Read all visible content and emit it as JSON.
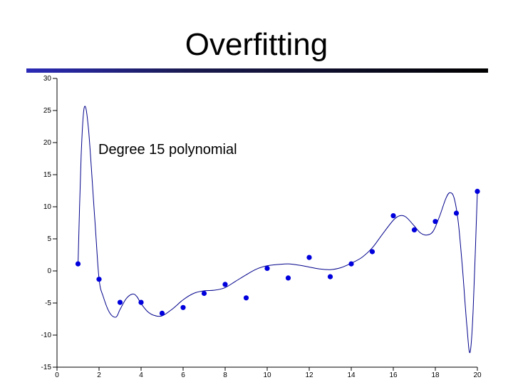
{
  "slide": {
    "title": "Overfitting"
  },
  "chart_data": {
    "type": "scatter",
    "title": "",
    "xlabel": "",
    "ylabel": "",
    "xlim": [
      0,
      20
    ],
    "ylim": [
      -15,
      30
    ],
    "x_ticks": [
      0,
      2,
      4,
      6,
      8,
      10,
      12,
      14,
      16,
      18,
      20
    ],
    "y_ticks": [
      30,
      25,
      20,
      15,
      10,
      5,
      0,
      -5,
      -10,
      -15
    ],
    "grid": false,
    "annotation": "Degree 15 polynomial",
    "colors": {
      "points": "#0000dd",
      "curve": "#00008b",
      "axis": "#000000"
    },
    "series": [
      {
        "kind": "points",
        "x": [
          1,
          2,
          3,
          4,
          5,
          6,
          7,
          8,
          9,
          10,
          11,
          12,
          13,
          14,
          15,
          16,
          17,
          18,
          19,
          20
        ],
        "y": [
          1.1,
          -1.3,
          -4.9,
          -4.9,
          -6.6,
          -5.7,
          -3.5,
          -2.1,
          -4.2,
          0.4,
          -1.1,
          2.1,
          -0.9,
          1.1,
          3.0,
          8.6,
          6.4,
          7.7,
          9.0,
          12.4
        ]
      },
      {
        "kind": "curve",
        "x": [
          1.0,
          1.15,
          1.3,
          1.5,
          1.8,
          2.0,
          2.2,
          2.5,
          2.8,
          3.0,
          3.3,
          3.6,
          3.8,
          4.0,
          4.3,
          4.6,
          5.0,
          5.5,
          6.0,
          6.5,
          7.0,
          7.5,
          8.0,
          8.5,
          9.0,
          9.5,
          10.0,
          10.5,
          11.0,
          11.5,
          12.0,
          12.5,
          13.0,
          13.5,
          14.0,
          14.5,
          15.0,
          15.5,
          16.0,
          16.3,
          16.6,
          17.0,
          17.3,
          17.6,
          17.9,
          18.2,
          18.5,
          18.7,
          18.9,
          19.1,
          19.3,
          19.5,
          19.65,
          19.8,
          20.0
        ],
        "y": [
          1.0,
          18.0,
          25.5,
          22.0,
          8.0,
          -1.2,
          -4.0,
          -6.5,
          -7.2,
          -6.0,
          -4.3,
          -3.6,
          -4.0,
          -5.1,
          -6.3,
          -6.9,
          -7.0,
          -5.9,
          -4.5,
          -3.5,
          -3.1,
          -3.0,
          -2.6,
          -1.6,
          -0.6,
          0.3,
          0.8,
          1.0,
          1.1,
          0.9,
          0.6,
          0.3,
          0.2,
          0.5,
          1.2,
          2.1,
          3.6,
          5.8,
          7.9,
          8.6,
          8.4,
          7.0,
          5.9,
          5.6,
          6.2,
          8.5,
          11.3,
          12.2,
          11.3,
          7.3,
          0.0,
          -8.6,
          -12.7,
          -6.0,
          12.4
        ]
      }
    ]
  }
}
